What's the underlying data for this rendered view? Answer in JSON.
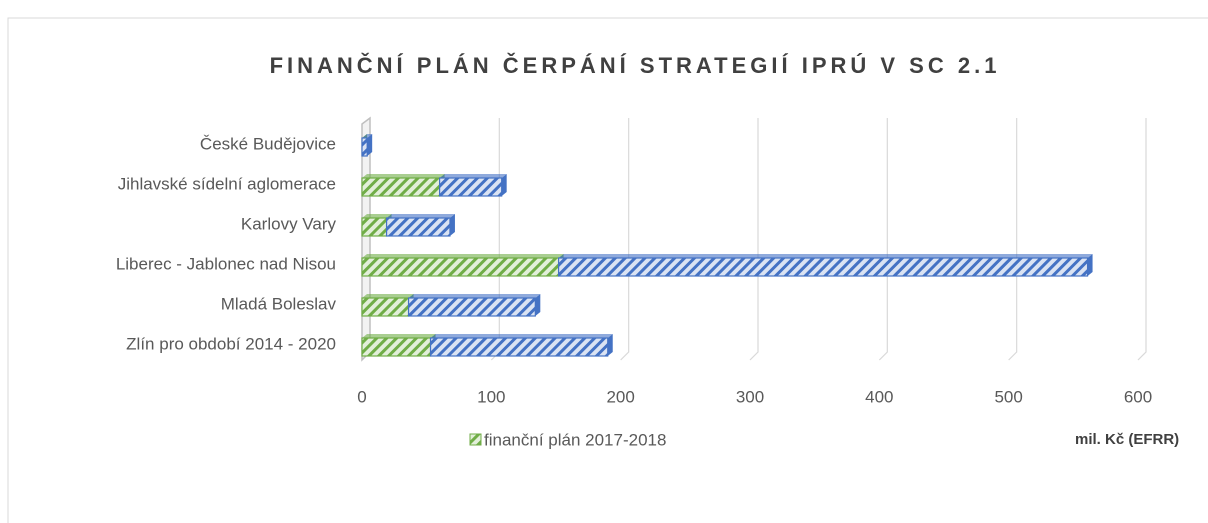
{
  "chart_data": {
    "type": "bar",
    "orientation": "horizontal",
    "stacked": true,
    "title": "FINANČNÍ PLÁN ČERPÁNÍ STRATEGIÍ IPRÚ V SC 2.1",
    "x_label": "mil. Kč (EFRR)",
    "categories": [
      "České Budějovice",
      "Jihlavské sídelní aglomerace",
      "Karlovy Vary",
      "Liberec - Jablonec nad Nisou",
      "Mladá Boleslav",
      "Zlín pro období 2014 - 2020"
    ],
    "series": [
      {
        "name": "finanční plán 2017-2018",
        "color": "#70ad47",
        "values": [
          0,
          60,
          19,
          152,
          36,
          53
        ]
      },
      {
        "color": "#4472c4",
        "values": [
          4,
          48,
          49,
          409,
          98,
          137
        ]
      }
    ],
    "xlim": [
      0,
      600
    ],
    "xticks": [
      0,
      100,
      200,
      300,
      400,
      500,
      600
    ],
    "grid": true
  }
}
